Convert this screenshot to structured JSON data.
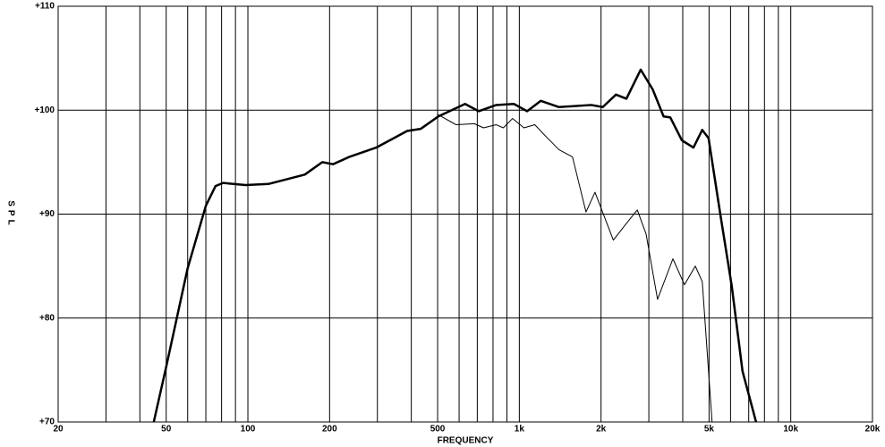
{
  "chart_data": {
    "type": "line",
    "x_label": "FREQUENCY",
    "y_label": "SPL",
    "x_scale": "log",
    "xlim": [
      20,
      20000
    ],
    "xticks": [
      {
        "value": 20,
        "label": "20"
      },
      {
        "value": 50,
        "label": "50"
      },
      {
        "value": 100,
        "label": "100"
      },
      {
        "value": 200,
        "label": "200"
      },
      {
        "value": 500,
        "label": "500"
      },
      {
        "value": 1000,
        "label": "1k"
      },
      {
        "value": 2000,
        "label": "2k"
      },
      {
        "value": 5000,
        "label": "5k"
      },
      {
        "value": 10000,
        "label": "10k"
      },
      {
        "value": 20000,
        "label": "20k"
      }
    ],
    "x_minor_ticks": [
      30,
      40,
      60,
      70,
      80,
      90,
      300,
      400,
      600,
      700,
      800,
      900,
      3000,
      4000,
      6000,
      7000,
      8000,
      9000
    ],
    "ylim": [
      70,
      110
    ],
    "yticks": [
      {
        "value": 70,
        "label": "+70"
      },
      {
        "value": 80,
        "label": "+80"
      },
      {
        "value": 90,
        "label": "+90"
      },
      {
        "value": 100,
        "label": "+100"
      },
      {
        "value": 110,
        "label": "+110"
      }
    ],
    "grid": true,
    "series": [
      {
        "color": "#000000",
        "width": 2.5,
        "x": [
          45,
          50,
          60,
          70,
          76,
          81,
          98,
          119,
          162,
          188,
          206,
          236,
          297,
          386,
          433,
          503,
          631,
          708,
          822,
          955,
          1069,
          1200,
          1400,
          1840,
          2030,
          2270,
          2480,
          2800,
          3100,
          3400,
          3600,
          3970,
          4380,
          4720,
          4980,
          5500,
          6060,
          6640,
          7450
        ],
        "values": [
          70,
          75.3,
          84.8,
          90.8,
          92.7,
          93,
          92.8,
          92.9,
          93.8,
          95,
          94.8,
          95.5,
          96.4,
          98,
          98.2,
          99.4,
          100.6,
          99.9,
          100.5,
          100.6,
          99.9,
          100.9,
          100.3,
          100.5,
          100.3,
          101.5,
          101.1,
          103.9,
          102,
          99.4,
          99.3,
          97.1,
          96.4,
          98.1,
          97.3,
          90,
          83.1,
          74.9,
          70
        ]
      },
      {
        "color": "#000000",
        "width": 1,
        "x": [
          500,
          585,
          683,
          738,
          822,
          873,
          944,
          1040,
          1140,
          1250,
          1400,
          1570,
          1760,
          1900,
          2220,
          2480,
          2720,
          2930,
          3230,
          3680,
          4060,
          4450,
          4720,
          5130
        ],
        "values": [
          99.6,
          98.6,
          98.7,
          98.3,
          98.6,
          98.3,
          99.2,
          98.3,
          98.6,
          97.5,
          96.2,
          95.5,
          90.2,
          92.1,
          87.5,
          89.1,
          90.4,
          88.1,
          81.8,
          85.7,
          83.2,
          85,
          83.5,
          70
        ]
      }
    ]
  }
}
